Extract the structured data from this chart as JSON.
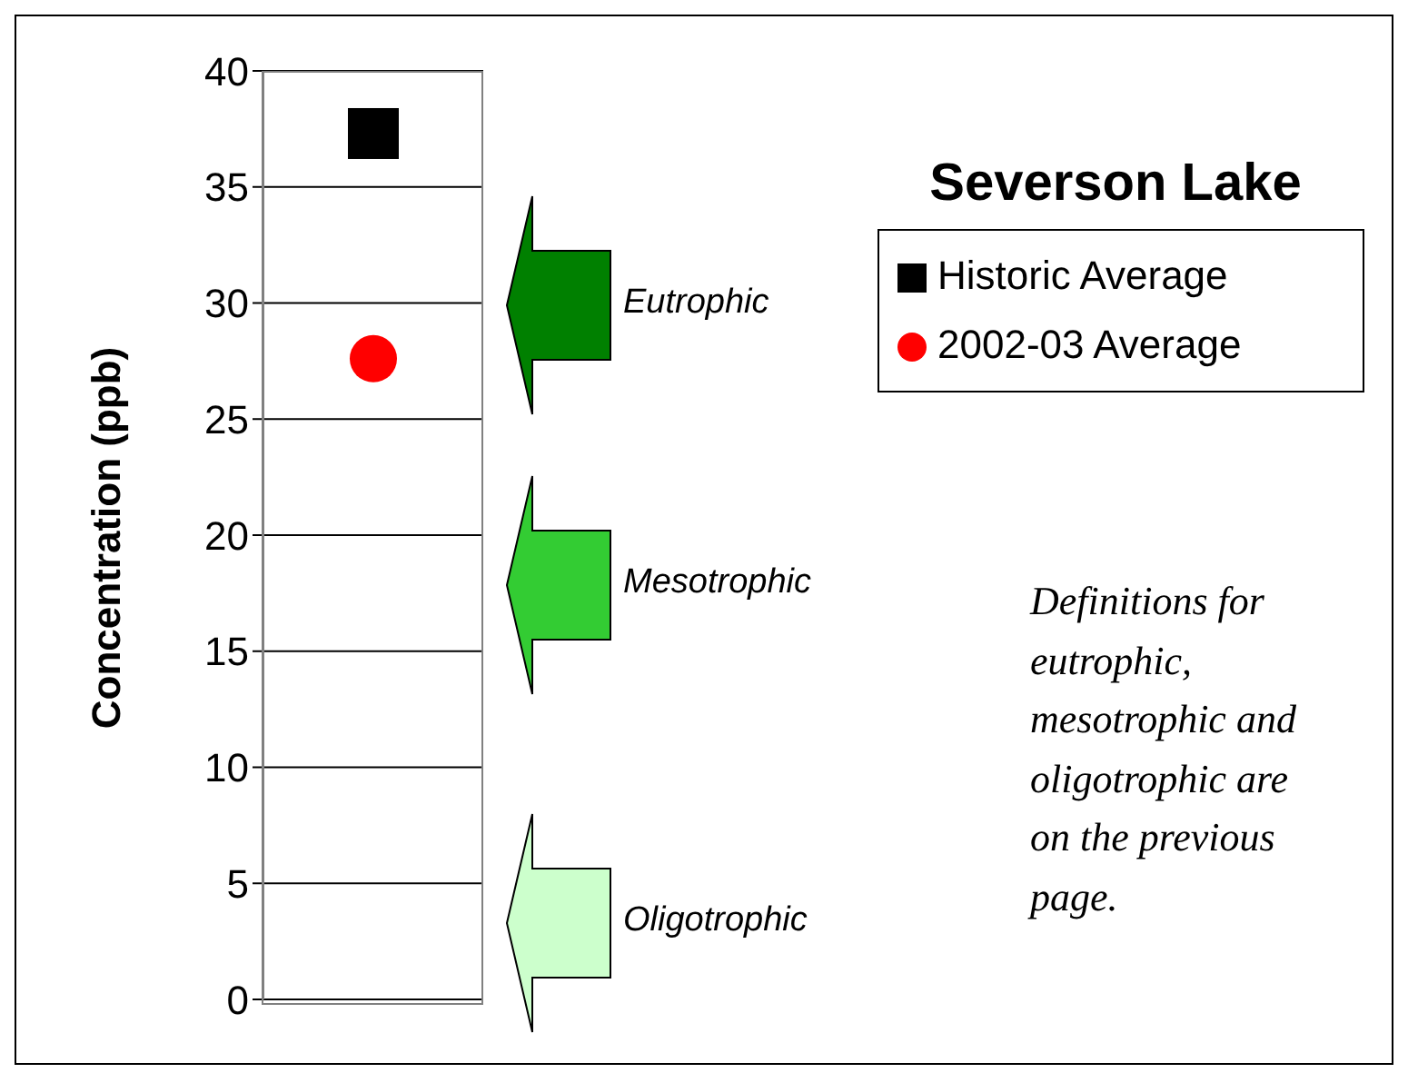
{
  "chart_data": {
    "type": "scatter",
    "title": "Severson Lake",
    "ylabel": "Concentration (ppb)",
    "categories": [
      null
    ],
    "series": [
      {
        "name": "Historic Average",
        "color": "#000000",
        "values": [
          37.3
        ],
        "marker": "square"
      },
      {
        "name": "2002-03 Average",
        "color": "#ff0000",
        "values": [
          27.6
        ],
        "marker": "circle"
      }
    ],
    "ylim": [
      0,
      40
    ],
    "yticks": [
      0,
      5,
      10,
      15,
      20,
      25,
      30,
      35,
      40
    ],
    "grid": "y",
    "legend": "right",
    "annotations": [
      "Eutrophic",
      "Mesotrophic",
      "Oligotrophic",
      "Definitions for eutrophic, mesotrophic and oligotrophic are on the previous page."
    ]
  }
}
